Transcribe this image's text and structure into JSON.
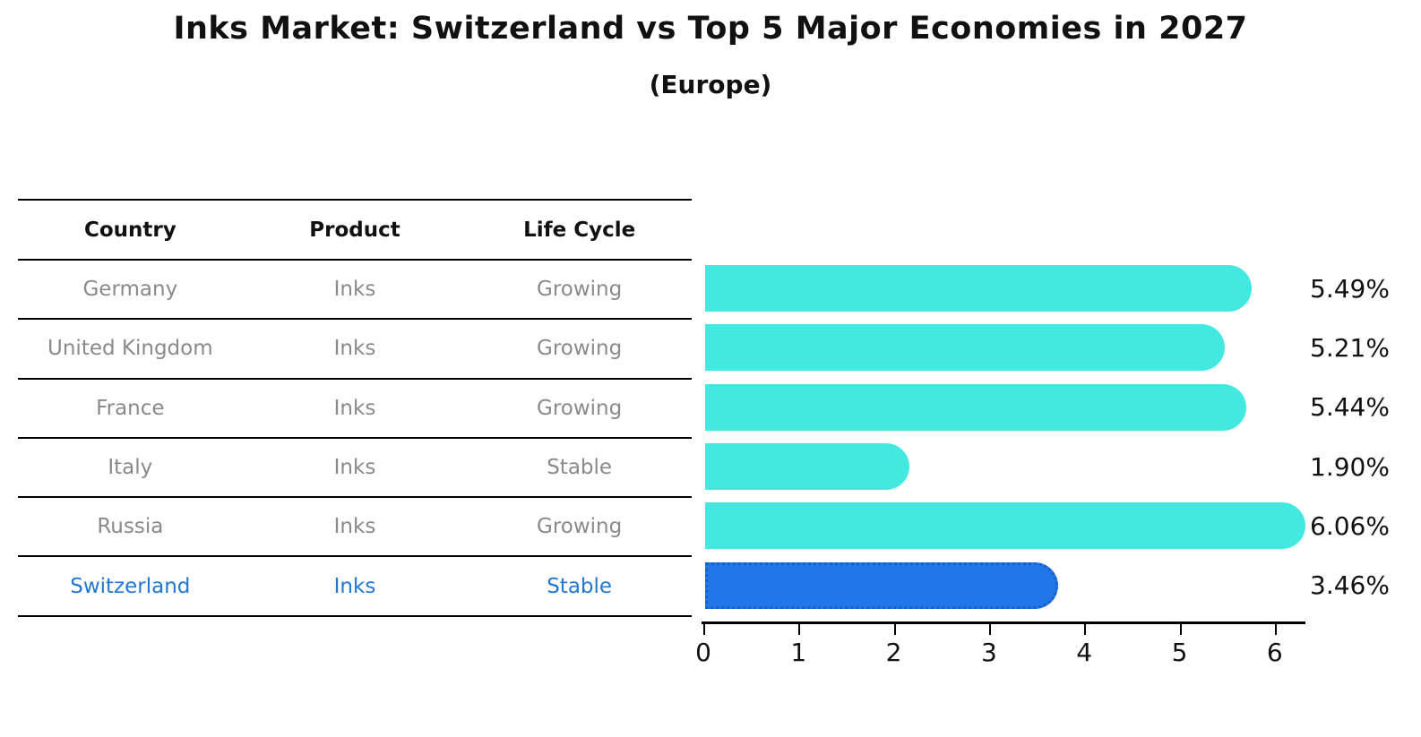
{
  "title": "Inks Market: Switzerland vs Top 5 Major Economies in 2027",
  "subtitle": "(Europe)",
  "table": {
    "headers": [
      "Country",
      "Product",
      "Life Cycle"
    ],
    "rows": [
      {
        "country": "Germany",
        "product": "Inks",
        "life_cycle": "Growing",
        "highlight": false
      },
      {
        "country": "United Kingdom",
        "product": "Inks",
        "life_cycle": "Growing",
        "highlight": false
      },
      {
        "country": "France",
        "product": "Inks",
        "life_cycle": "Growing",
        "highlight": false
      },
      {
        "country": "Italy",
        "product": "Inks",
        "life_cycle": "Stable",
        "highlight": false
      },
      {
        "country": "Russia",
        "product": "Inks",
        "life_cycle": "Growing",
        "highlight": false
      },
      {
        "country": "Switzerland",
        "product": "Inks",
        "life_cycle": "Stable",
        "highlight": true
      }
    ]
  },
  "chart_data": {
    "type": "bar",
    "orientation": "horizontal",
    "title": "Inks Market: Switzerland vs Top 5 Major Economies in 2027",
    "subtitle": "(Europe)",
    "categories": [
      "Germany",
      "United Kingdom",
      "France",
      "Italy",
      "Russia",
      "Switzerland"
    ],
    "values": [
      5.49,
      5.21,
      5.44,
      1.9,
      6.06,
      3.46
    ],
    "value_labels": [
      "5.49%",
      "5.21%",
      "5.44%",
      "1.90%",
      "6.06%",
      "3.46%"
    ],
    "highlight_index": 5,
    "xlabel": "",
    "ylabel": "",
    "xlim": [
      0,
      6.3
    ],
    "x_ticks": [
      "0",
      "1",
      "2",
      "3",
      "4",
      "5",
      "6"
    ],
    "grid": false,
    "legend": "none"
  },
  "colors": {
    "bar": "#43e8e1",
    "highlight_bar_fill": "#2277e8",
    "highlight_bar_border": "#1a5fc4",
    "highlight_text": "#2277d4",
    "table_text": "#8a8a8a",
    "header_text": "#111111",
    "axis": "#000000"
  }
}
